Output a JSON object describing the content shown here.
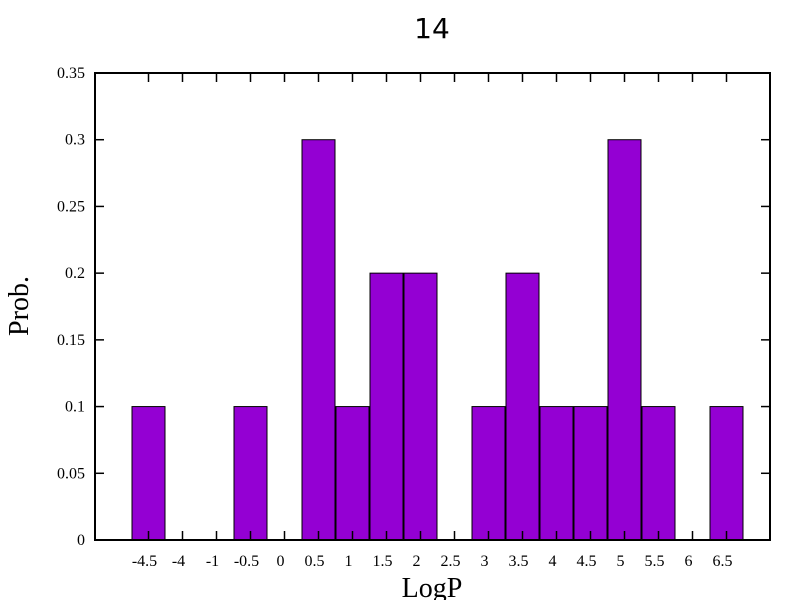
{
  "chart_data": {
    "type": "bar",
    "title": "14",
    "xlabel": "LogP",
    "ylabel": "Prob.",
    "ylim": [
      0,
      0.35
    ],
    "yticks": [
      "0",
      "0.05",
      "0.1",
      "0.15",
      "0.2",
      "0.25",
      "0.3",
      "0.35"
    ],
    "x_tick_labels": [
      "-4.5",
      "-4",
      "-1",
      "-0.5",
      "0",
      "0.5",
      "1",
      "1.5",
      "2",
      "2.5",
      "3",
      "3.5",
      "4",
      "4.5",
      "5",
      "5.5",
      "6",
      "6.5"
    ],
    "categories": [
      "-4.5",
      "-4",
      "-1",
      "-0.5",
      "0",
      "0.5",
      "1",
      "1.5",
      "2",
      "2.5",
      "3",
      "3.5",
      "4",
      "4.5",
      "5",
      "5.5",
      "6",
      "6.5"
    ],
    "values": [
      0.1,
      0,
      0,
      0.1,
      0,
      0.3,
      0.1,
      0.2,
      0.2,
      0,
      0.1,
      0.2,
      0.1,
      0.1,
      0.3,
      0.1,
      0,
      0.1
    ],
    "bar_color": "#9400d3",
    "grid": false,
    "legend": "none"
  }
}
